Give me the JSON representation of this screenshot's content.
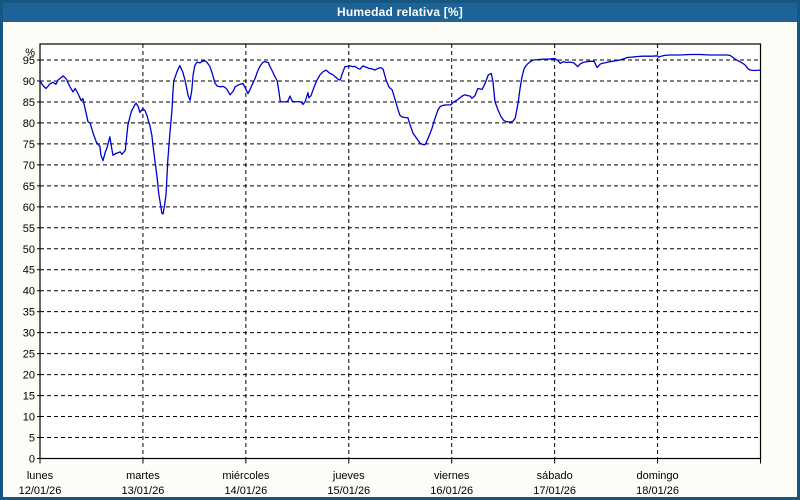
{
  "title": "Humedad relativa [%]",
  "colors": {
    "titlebar_bg": "#1d6397",
    "titlebar_text": "#ffffff",
    "frame_border": "#175680",
    "page_bg": "#fcfdf6",
    "plot_bg": "#ffffff",
    "plot_border": "#000000",
    "grid": "#000000",
    "line": "#0000cd",
    "label_text": "#000000"
  },
  "chart_data": {
    "type": "line",
    "title": "Humedad relativa [%]",
    "ylabel": "%",
    "ylim": [
      0,
      98.8
    ],
    "yticks": [
      0,
      5,
      10,
      15,
      20,
      25,
      30,
      35,
      40,
      45,
      50,
      55,
      60,
      65,
      70,
      75,
      80,
      85,
      90,
      95
    ],
    "x_unit": "hours since lunes 00:00",
    "xlim": [
      0,
      168
    ],
    "grid": "dashed",
    "legend": "none",
    "day_labels": [
      {
        "name": "lunes",
        "date": "12/01/26",
        "hour": 0
      },
      {
        "name": "martes",
        "date": "13/01/26",
        "hour": 24
      },
      {
        "name": "miércoles",
        "date": "14/01/26",
        "hour": 48
      },
      {
        "name": "jueves",
        "date": "15/01/26",
        "hour": 72
      },
      {
        "name": "viernes",
        "date": "16/01/26",
        "hour": 96
      },
      {
        "name": "sábado",
        "date": "17/01/26",
        "hour": 120
      },
      {
        "name": "domingo",
        "date": "18/01/26",
        "hour": 144
      }
    ],
    "series": [
      {
        "name": "Humedad relativa",
        "color": "#0000cd",
        "points": [
          [
            0,
            90
          ],
          [
            0.7,
            88.9
          ],
          [
            1.4,
            88.2
          ],
          [
            2.3,
            89.3
          ],
          [
            3.0,
            89.7
          ],
          [
            3.7,
            89.2
          ],
          [
            4.2,
            90.2
          ],
          [
            5.4,
            91.2
          ],
          [
            6.1,
            90.5
          ],
          [
            7.0,
            88.6
          ],
          [
            7.7,
            87.4
          ],
          [
            8.2,
            88.2
          ],
          [
            8.9,
            86.9
          ],
          [
            9.6,
            85.3
          ],
          [
            10.0,
            85.8
          ],
          [
            10.5,
            83.5
          ],
          [
            11.2,
            80.3
          ],
          [
            11.7,
            79.9
          ],
          [
            12.4,
            77.5
          ],
          [
            13.1,
            75.5
          ],
          [
            14.0,
            74.3
          ],
          [
            14.2,
            72.3
          ],
          [
            14.7,
            71.0
          ],
          [
            15.2,
            73.0
          ],
          [
            15.6,
            74.0
          ],
          [
            16.3,
            76.7
          ],
          [
            16.6,
            74.7
          ],
          [
            17.0,
            72.3
          ],
          [
            17.7,
            72.7
          ],
          [
            18.7,
            73.1
          ],
          [
            19.1,
            72.5
          ],
          [
            19.9,
            73.5
          ],
          [
            20.5,
            79.5
          ],
          [
            21.3,
            82.7
          ],
          [
            22.1,
            84.3
          ],
          [
            22.4,
            84.7
          ],
          [
            22.9,
            83.9
          ],
          [
            23.3,
            82.5
          ],
          [
            23.6,
            82.9
          ],
          [
            24.0,
            83.4
          ],
          [
            24.5,
            82.9
          ],
          [
            25.0,
            81.6
          ],
          [
            25.4,
            80.0
          ],
          [
            25.6,
            79.5
          ],
          [
            26.1,
            77.0
          ],
          [
            26.3,
            75.0
          ],
          [
            26.8,
            71.0
          ],
          [
            27.3,
            67.0
          ],
          [
            27.7,
            63.0
          ],
          [
            28.2,
            60.0
          ],
          [
            28.4,
            58.5
          ],
          [
            28.7,
            58.3
          ],
          [
            28.9,
            59.5
          ],
          [
            29.1,
            60.7
          ],
          [
            29.4,
            63.1
          ],
          [
            29.8,
            71.1
          ],
          [
            30.3,
            77.5
          ],
          [
            30.8,
            83.4
          ],
          [
            31.0,
            87.4
          ],
          [
            31.2,
            90.1
          ],
          [
            31.5,
            90.9
          ],
          [
            31.9,
            92.1
          ],
          [
            32.6,
            93.7
          ],
          [
            33.3,
            92.1
          ],
          [
            33.8,
            90.2
          ],
          [
            34.3,
            87.8
          ],
          [
            34.5,
            86.6
          ],
          [
            35.0,
            85.4
          ],
          [
            35.4,
            87.8
          ],
          [
            35.7,
            91.4
          ],
          [
            36.1,
            93.7
          ],
          [
            36.6,
            94.5
          ],
          [
            37.3,
            94.3
          ],
          [
            37.8,
            94.7
          ],
          [
            38.5,
            94.8
          ],
          [
            38.9,
            94.5
          ],
          [
            39.6,
            93.5
          ],
          [
            40.1,
            92.0
          ],
          [
            40.8,
            89.5
          ],
          [
            41.3,
            88.8
          ],
          [
            42.0,
            88.6
          ],
          [
            42.7,
            88.7
          ],
          [
            43.1,
            88.5
          ],
          [
            43.6,
            88.0
          ],
          [
            44.3,
            86.7
          ],
          [
            45.0,
            87.5
          ],
          [
            45.5,
            88.6
          ],
          [
            46.2,
            89.0
          ],
          [
            46.6,
            89.2
          ],
          [
            47.3,
            89.4
          ],
          [
            47.8,
            88.5
          ],
          [
            48.0,
            88.0
          ],
          [
            48.5,
            87.0
          ],
          [
            49.0,
            88.0
          ],
          [
            49.4,
            89.0
          ],
          [
            50.1,
            90.5
          ],
          [
            50.8,
            92.5
          ],
          [
            51.3,
            93.5
          ],
          [
            52.0,
            94.5
          ],
          [
            52.5,
            94.6
          ],
          [
            53.2,
            94.4
          ],
          [
            53.6,
            93.5
          ],
          [
            54.1,
            92.5
          ],
          [
            54.8,
            91.0
          ],
          [
            55.3,
            90.0
          ],
          [
            55.7,
            87.5
          ],
          [
            56.0,
            85.2
          ],
          [
            56.4,
            85.0
          ],
          [
            57.1,
            85.0
          ],
          [
            57.8,
            85.2
          ],
          [
            58.3,
            86.4
          ],
          [
            58.8,
            85.2
          ],
          [
            59.5,
            85.0
          ],
          [
            60.2,
            85.1
          ],
          [
            60.6,
            85.0
          ],
          [
            61.1,
            84.8
          ],
          [
            61.3,
            84.4
          ],
          [
            61.8,
            85.0
          ],
          [
            62.5,
            87.2
          ],
          [
            62.7,
            86.0
          ],
          [
            63.2,
            86.5
          ],
          [
            63.9,
            88.5
          ],
          [
            64.6,
            90.2
          ],
          [
            65.3,
            91.5
          ],
          [
            66.0,
            92.2
          ],
          [
            66.7,
            92.6
          ],
          [
            67.6,
            91.8
          ],
          [
            68.3,
            91.5
          ],
          [
            68.8,
            91.0
          ],
          [
            69.5,
            90.4
          ],
          [
            70.0,
            90.2
          ],
          [
            70.4,
            91.5
          ],
          [
            71.1,
            93.4
          ],
          [
            71.8,
            93.5
          ],
          [
            72.3,
            93.6
          ],
          [
            73.0,
            93.4
          ],
          [
            73.4,
            93.5
          ],
          [
            74.1,
            93.0
          ],
          [
            74.6,
            92.8
          ],
          [
            75.3,
            93.6
          ],
          [
            76.0,
            93.3
          ],
          [
            76.7,
            93.0
          ],
          [
            77.4,
            92.9
          ],
          [
            78.1,
            92.6
          ],
          [
            78.8,
            93.0
          ],
          [
            79.5,
            93.2
          ],
          [
            80.0,
            92.8
          ],
          [
            80.7,
            90.2
          ],
          [
            81.4,
            88.5
          ],
          [
            82.1,
            87.9
          ],
          [
            82.8,
            85.6
          ],
          [
            83.5,
            83.1
          ],
          [
            83.9,
            81.9
          ],
          [
            84.4,
            81.4
          ],
          [
            85.1,
            81.3
          ],
          [
            85.8,
            81.2
          ],
          [
            86.3,
            79.5
          ],
          [
            87.0,
            77.5
          ],
          [
            87.9,
            76.2
          ],
          [
            88.6,
            75.2
          ],
          [
            89.1,
            74.9
          ],
          [
            89.8,
            74.8
          ],
          [
            90.5,
            76.3
          ],
          [
            91.4,
            78.7
          ],
          [
            92.1,
            81.1
          ],
          [
            92.8,
            83.1
          ],
          [
            93.3,
            83.9
          ],
          [
            94.0,
            84.2
          ],
          [
            94.9,
            84.3
          ],
          [
            95.8,
            84.3
          ],
          [
            96.3,
            84.9
          ],
          [
            97.5,
            85.6
          ],
          [
            98.4,
            86.4
          ],
          [
            99.1,
            86.7
          ],
          [
            99.8,
            86.5
          ],
          [
            100.3,
            86.4
          ],
          [
            100.7,
            85.9
          ],
          [
            101.4,
            86.5
          ],
          [
            102.1,
            88.2
          ],
          [
            103.1,
            88.0
          ],
          [
            103.8,
            89.5
          ],
          [
            104.5,
            91.4
          ],
          [
            105.2,
            91.8
          ],
          [
            105.6,
            90.0
          ],
          [
            106.1,
            85.0
          ],
          [
            106.8,
            83.1
          ],
          [
            107.5,
            81.5
          ],
          [
            108.2,
            80.5
          ],
          [
            108.9,
            80.3
          ],
          [
            109.6,
            80.2
          ],
          [
            110.3,
            80.4
          ],
          [
            110.8,
            81.1
          ],
          [
            111.5,
            84.9
          ],
          [
            111.9,
            88.0
          ],
          [
            112.4,
            91.0
          ],
          [
            112.9,
            93.0
          ],
          [
            113.6,
            94.0
          ],
          [
            114.3,
            94.6
          ],
          [
            115.0,
            95.0
          ],
          [
            116.1,
            95.1
          ],
          [
            117.3,
            95.2
          ],
          [
            118.4,
            95.2
          ],
          [
            119.6,
            95.3
          ],
          [
            120.1,
            95.3
          ],
          [
            120.8,
            94.8
          ],
          [
            121.3,
            94.2
          ],
          [
            122.0,
            94.6
          ],
          [
            122.7,
            94.4
          ],
          [
            123.6,
            94.5
          ],
          [
            124.5,
            94.3
          ],
          [
            125.4,
            93.4
          ],
          [
            125.9,
            94.0
          ],
          [
            126.6,
            94.4
          ],
          [
            127.5,
            94.6
          ],
          [
            128.2,
            94.7
          ],
          [
            129.2,
            94.7
          ],
          [
            129.9,
            93.2
          ],
          [
            130.6,
            94.0
          ],
          [
            131.0,
            94.2
          ],
          [
            131.7,
            94.3
          ],
          [
            132.4,
            94.5
          ],
          [
            132.9,
            94.6
          ],
          [
            134.1,
            94.8
          ],
          [
            135.2,
            95.0
          ],
          [
            136.2,
            95.3
          ],
          [
            136.9,
            95.6
          ],
          [
            138.0,
            95.7
          ],
          [
            139.2,
            95.8
          ],
          [
            140.4,
            95.9
          ],
          [
            141.5,
            95.9
          ],
          [
            142.7,
            95.9
          ],
          [
            143.9,
            96.0
          ],
          [
            144.3,
            95.7
          ],
          [
            144.8,
            95.9
          ],
          [
            145.7,
            96.1
          ],
          [
            146.9,
            96.2
          ],
          [
            149.2,
            96.2
          ],
          [
            151.6,
            96.3
          ],
          [
            153.9,
            96.3
          ],
          [
            156.2,
            96.2
          ],
          [
            158.6,
            96.2
          ],
          [
            160.2,
            96.2
          ],
          [
            160.9,
            96.1
          ],
          [
            161.6,
            95.6
          ],
          [
            162.1,
            95.2
          ],
          [
            162.8,
            94.8
          ],
          [
            163.7,
            94.3
          ],
          [
            164.4,
            93.8
          ],
          [
            165.1,
            92.9
          ],
          [
            165.6,
            92.6
          ],
          [
            166.7,
            92.5
          ],
          [
            167.9,
            92.6
          ]
        ]
      }
    ]
  }
}
